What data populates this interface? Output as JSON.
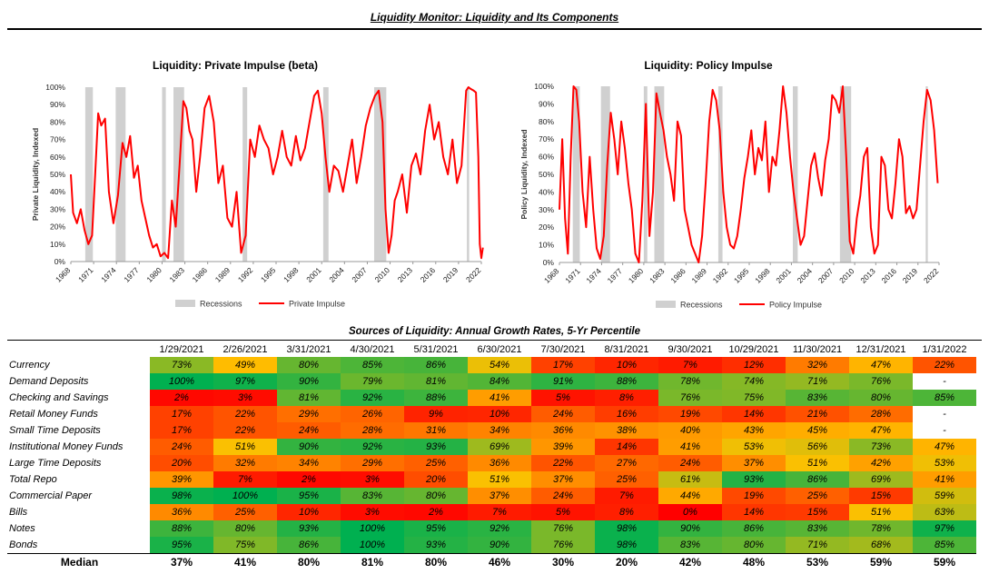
{
  "page": {
    "title": "Liquidity Monitor: Liquidity and Its Components"
  },
  "chart_data": [
    {
      "type": "line",
      "title": "Liquidity: Private Impulse (beta)",
      "ylabel": "Private Liquidity, Indexed",
      "xlabel": "",
      "xlim": [
        1968,
        2022
      ],
      "ylim": [
        0,
        100
      ],
      "ytick_labels": [
        "0%",
        "10%",
        "20%",
        "30%",
        "40%",
        "50%",
        "60%",
        "70%",
        "80%",
        "90%",
        "100%"
      ],
      "xtick_values": [
        1968,
        1971,
        1974,
        1977,
        1980,
        1983,
        1986,
        1989,
        1992,
        1995,
        1998,
        2001,
        2004,
        2007,
        2010,
        2013,
        2016,
        2019,
        2022
      ],
      "xtick_labels": [
        "1968",
        "1971",
        "1974",
        "1977",
        "1980",
        "1983",
        "1986",
        "1989",
        "1992",
        "1995",
        "1998",
        "2001",
        "2004",
        "2007",
        "2010",
        "2013",
        "2016",
        "2019",
        "2022"
      ],
      "grid": false,
      "legend": [
        "Recessions",
        "Private Impulse"
      ],
      "recessions": [
        [
          1969.9,
          1970.9
        ],
        [
          1973.9,
          1975.2
        ],
        [
          1980.0,
          1980.5
        ],
        [
          1981.5,
          1982.9
        ],
        [
          1990.6,
          1991.2
        ],
        [
          2001.2,
          2001.9
        ],
        [
          2007.9,
          2009.5
        ],
        [
          2020.1,
          2020.4
        ]
      ],
      "series": [
        {
          "name": "Private Impulse",
          "x": [
            1968,
            1968.3,
            1968.8,
            1969.3,
            1969.8,
            1970.3,
            1970.8,
            1971.2,
            1971.6,
            1972.0,
            1972.5,
            1973.0,
            1973.6,
            1974.2,
            1974.8,
            1975.3,
            1975.8,
            1976.3,
            1976.8,
            1977.3,
            1977.8,
            1978.3,
            1978.8,
            1979.3,
            1979.8,
            1980.3,
            1980.8,
            1981.3,
            1981.8,
            1982.3,
            1982.8,
            1983.2,
            1983.6,
            1984.0,
            1984.5,
            1985.0,
            1985.6,
            1986.2,
            1986.8,
            1987.4,
            1988.0,
            1988.6,
            1989.2,
            1989.8,
            1990.4,
            1991.0,
            1991.6,
            1992.2,
            1992.8,
            1993.4,
            1994.0,
            1994.6,
            1995.2,
            1995.8,
            1996.4,
            1997.0,
            1997.6,
            1998.2,
            1998.8,
            1999.4,
            2000.0,
            2000.5,
            2001.0,
            2001.5,
            2002.0,
            2002.6,
            2003.2,
            2003.8,
            2004.4,
            2005.0,
            2005.6,
            2006.2,
            2006.8,
            2007.4,
            2008.0,
            2008.5,
            2009.0,
            2009.4,
            2009.8,
            2010.2,
            2010.6,
            2011.0,
            2011.6,
            2012.2,
            2012.8,
            2013.4,
            2014.0,
            2014.6,
            2015.2,
            2015.8,
            2016.4,
            2017.0,
            2017.6,
            2018.2,
            2018.8,
            2019.4,
            2020.0,
            2020.3,
            2020.6,
            2021.0,
            2021.3,
            2021.6,
            2021.8,
            2022.0,
            2022.2
          ],
          "values": [
            50,
            28,
            22,
            30,
            18,
            10,
            15,
            50,
            85,
            78,
            82,
            40,
            22,
            38,
            68,
            60,
            72,
            48,
            55,
            35,
            25,
            15,
            8,
            10,
            3,
            5,
            2,
            35,
            20,
            55,
            92,
            88,
            75,
            70,
            40,
            60,
            88,
            95,
            80,
            45,
            55,
            25,
            20,
            40,
            5,
            15,
            70,
            60,
            78,
            70,
            65,
            50,
            60,
            75,
            60,
            55,
            72,
            58,
            65,
            80,
            95,
            98,
            85,
            60,
            40,
            55,
            52,
            40,
            55,
            70,
            45,
            60,
            78,
            88,
            95,
            98,
            80,
            30,
            5,
            15,
            35,
            40,
            50,
            28,
            55,
            62,
            50,
            75,
            90,
            70,
            80,
            60,
            50,
            70,
            45,
            55,
            98,
            100,
            99,
            98,
            97,
            60,
            10,
            2,
            8
          ]
        }
      ]
    },
    {
      "type": "line",
      "title": "Liquidity: Policy Impulse",
      "ylabel": "Policy Liquidity, Indexed",
      "xlabel": "",
      "xlim": [
        1968,
        2022
      ],
      "ylim": [
        0,
        100
      ],
      "ytick_labels": [
        "0%",
        "10%",
        "20%",
        "30%",
        "40%",
        "50%",
        "60%",
        "70%",
        "80%",
        "90%",
        "100%"
      ],
      "xtick_values": [
        1968,
        1971,
        1974,
        1977,
        1980,
        1983,
        1986,
        1989,
        1992,
        1995,
        1998,
        2001,
        2004,
        2007,
        2010,
        2013,
        2016,
        2019,
        2022
      ],
      "xtick_labels": [
        "1968",
        "1971",
        "1974",
        "1977",
        "1980",
        "1983",
        "1986",
        "1989",
        "1992",
        "1995",
        "1998",
        "2001",
        "2004",
        "2007",
        "2010",
        "2013",
        "2016",
        "2019",
        "2022"
      ],
      "grid": false,
      "legend": [
        "Recessions",
        "Policy Impulse"
      ],
      "recessions": [
        [
          1969.9,
          1970.9
        ],
        [
          1973.9,
          1975.2
        ],
        [
          1980.0,
          1980.5
        ],
        [
          1981.5,
          1982.9
        ],
        [
          1990.6,
          1991.2
        ],
        [
          2001.2,
          2001.9
        ],
        [
          2007.9,
          2009.5
        ],
        [
          2020.1,
          2020.4
        ]
      ],
      "series": [
        {
          "name": "Policy Impulse",
          "x": [
            1968,
            1968.4,
            1968.8,
            1969.2,
            1969.6,
            1970.0,
            1970.4,
            1970.8,
            1971.3,
            1971.8,
            1972.3,
            1972.8,
            1973.3,
            1973.8,
            1974.3,
            1974.8,
            1975.3,
            1975.8,
            1976.3,
            1976.8,
            1977.3,
            1977.8,
            1978.3,
            1978.8,
            1979.3,
            1979.8,
            1980.3,
            1980.8,
            1981.3,
            1981.8,
            1982.3,
            1982.8,
            1983.3,
            1983.8,
            1984.3,
            1984.8,
            1985.3,
            1985.8,
            1986.3,
            1986.8,
            1987.3,
            1987.8,
            1988.3,
            1988.8,
            1989.3,
            1989.8,
            1990.3,
            1990.8,
            1991.3,
            1991.8,
            1992.3,
            1992.8,
            1993.3,
            1993.8,
            1994.3,
            1994.8,
            1995.3,
            1995.8,
            1996.3,
            1996.8,
            1997.3,
            1997.8,
            1998.3,
            1998.8,
            1999.3,
            1999.8,
            2000.3,
            2000.8,
            2001.3,
            2001.8,
            2002.3,
            2002.8,
            2003.3,
            2003.8,
            2004.3,
            2004.8,
            2005.3,
            2005.8,
            2006.3,
            2006.8,
            2007.3,
            2007.8,
            2008.3,
            2008.8,
            2009.3,
            2009.8,
            2010.3,
            2010.8,
            2011.3,
            2011.8,
            2012.3,
            2012.8,
            2013.3,
            2013.8,
            2014.3,
            2014.8,
            2015.3,
            2015.8,
            2016.3,
            2016.8,
            2017.3,
            2017.8,
            2018.3,
            2018.8,
            2019.3,
            2019.8,
            2020.3,
            2020.8,
            2021.3,
            2021.8
          ],
          "values": [
            30,
            70,
            25,
            5,
            60,
            100,
            98,
            80,
            40,
            20,
            60,
            30,
            8,
            2,
            15,
            55,
            85,
            70,
            50,
            80,
            65,
            45,
            30,
            5,
            0,
            35,
            90,
            15,
            40,
            96,
            85,
            75,
            60,
            50,
            35,
            80,
            72,
            30,
            20,
            10,
            5,
            0,
            15,
            45,
            80,
            98,
            92,
            75,
            40,
            20,
            10,
            8,
            15,
            30,
            48,
            60,
            75,
            50,
            65,
            58,
            80,
            40,
            60,
            55,
            75,
            100,
            85,
            60,
            40,
            25,
            10,
            15,
            35,
            55,
            62,
            48,
            38,
            58,
            70,
            95,
            92,
            85,
            100,
            60,
            12,
            5,
            25,
            38,
            60,
            65,
            20,
            5,
            10,
            60,
            55,
            30,
            25,
            45,
            70,
            60,
            28,
            32,
            25,
            30,
            55,
            80,
            98,
            92,
            75,
            45
          ]
        }
      ]
    },
    {
      "type": "table",
      "title": "Sources of Liquidity: Annual Growth Rates, 5-Yr Percentile",
      "columns": [
        "1/29/2021",
        "2/26/2021",
        "3/31/2021",
        "4/30/2021",
        "5/31/2021",
        "6/30/2021",
        "7/30/2021",
        "8/31/2021",
        "9/30/2021",
        "10/29/2021",
        "11/30/2021",
        "12/31/2021",
        "1/31/2022"
      ],
      "rows": [
        {
          "label": "Currency",
          "values": [
            "73%",
            "49%",
            "80%",
            "85%",
            "86%",
            "54%",
            "17%",
            "10%",
            "7%",
            "12%",
            "32%",
            "47%",
            "22%"
          ]
        },
        {
          "label": "Demand Deposits",
          "values": [
            "100%",
            "97%",
            "90%",
            "79%",
            "81%",
            "84%",
            "91%",
            "88%",
            "78%",
            "74%",
            "71%",
            "76%",
            "-"
          ]
        },
        {
          "label": "Checking and Savings",
          "values": [
            "2%",
            "3%",
            "81%",
            "92%",
            "88%",
            "41%",
            "5%",
            "8%",
            "76%",
            "75%",
            "83%",
            "80%",
            "85%"
          ]
        },
        {
          "label": "Retail Money Funds",
          "values": [
            "17%",
            "22%",
            "29%",
            "26%",
            "9%",
            "10%",
            "24%",
            "16%",
            "19%",
            "14%",
            "21%",
            "28%",
            "-"
          ]
        },
        {
          "label": "Small Time Deposits",
          "values": [
            "17%",
            "22%",
            "24%",
            "28%",
            "31%",
            "34%",
            "36%",
            "38%",
            "40%",
            "43%",
            "45%",
            "47%",
            "-"
          ]
        },
        {
          "label": "Institutional Money Funds",
          "values": [
            "24%",
            "51%",
            "90%",
            "92%",
            "93%",
            "69%",
            "39%",
            "14%",
            "41%",
            "53%",
            "56%",
            "73%",
            "47%"
          ]
        },
        {
          "label": "Large Time Deposits",
          "values": [
            "20%",
            "32%",
            "34%",
            "29%",
            "25%",
            "36%",
            "22%",
            "27%",
            "24%",
            "37%",
            "51%",
            "42%",
            "53%"
          ]
        },
        {
          "label": "Total Repo",
          "values": [
            "39%",
            "7%",
            "2%",
            "3%",
            "20%",
            "51%",
            "37%",
            "25%",
            "61%",
            "93%",
            "86%",
            "69%",
            "41%"
          ]
        },
        {
          "label": "Commercial Paper",
          "values": [
            "98%",
            "100%",
            "95%",
            "83%",
            "80%",
            "37%",
            "24%",
            "7%",
            "44%",
            "19%",
            "25%",
            "15%",
            "59%"
          ]
        },
        {
          "label": "Bills",
          "values": [
            "36%",
            "25%",
            "10%",
            "3%",
            "2%",
            "7%",
            "5%",
            "8%",
            "0%",
            "14%",
            "15%",
            "51%",
            "63%"
          ]
        },
        {
          "label": "Notes",
          "values": [
            "88%",
            "80%",
            "93%",
            "100%",
            "95%",
            "92%",
            "76%",
            "98%",
            "90%",
            "86%",
            "83%",
            "78%",
            "97%"
          ]
        },
        {
          "label": "Bonds",
          "values": [
            "95%",
            "75%",
            "86%",
            "100%",
            "93%",
            "90%",
            "76%",
            "98%",
            "83%",
            "80%",
            "71%",
            "68%",
            "85%"
          ]
        }
      ],
      "median": {
        "label": "Median",
        "values": [
          "37%",
          "41%",
          "80%",
          "81%",
          "80%",
          "46%",
          "30%",
          "20%",
          "42%",
          "48%",
          "53%",
          "59%",
          "59%"
        ]
      }
    }
  ],
  "colors": {
    "line": "#ff0000",
    "recession": "#d0d0d0",
    "heat_low": "#ff0000",
    "heat_mid": "#ffc000",
    "heat_high": "#00b050"
  }
}
